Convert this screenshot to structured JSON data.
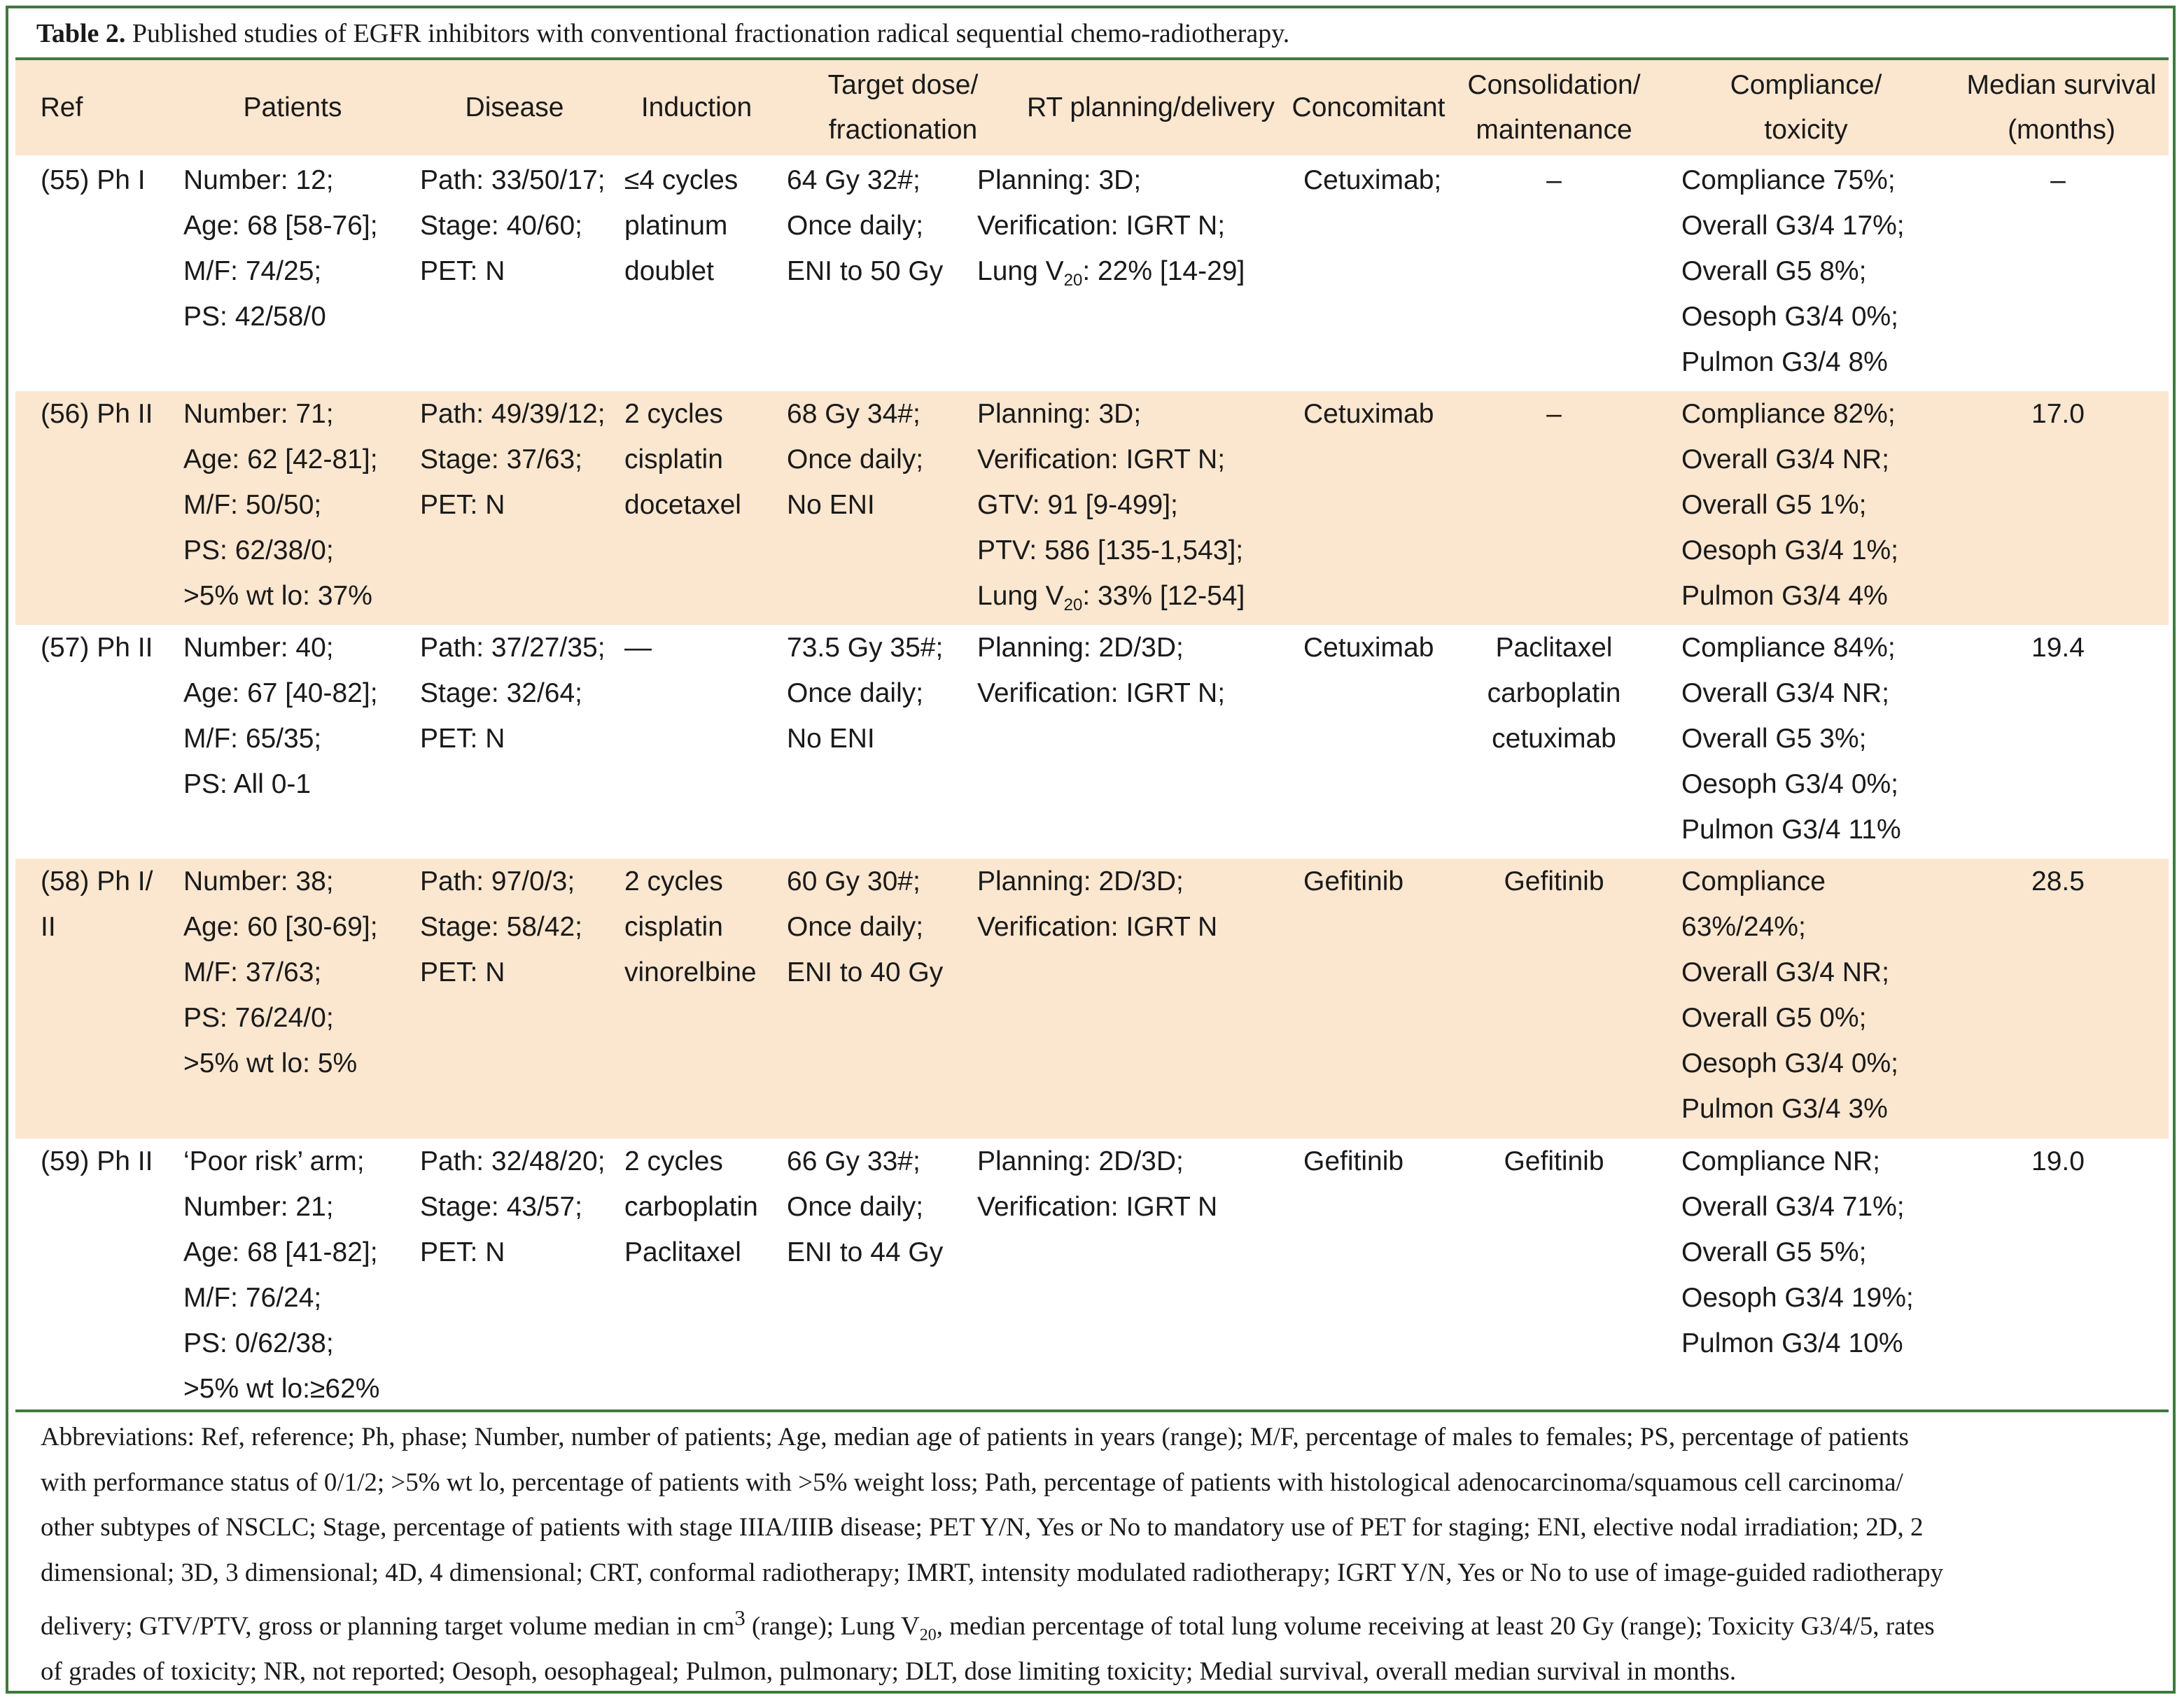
{
  "caption": {
    "label": "Table 2.",
    "text": "Published studies of EGFR inhibitors with conventional fractionation radical sequential chemo-radiotherapy."
  },
  "headers": [
    [
      "Ref"
    ],
    [
      "Patients"
    ],
    [
      "Disease"
    ],
    [
      "Induction"
    ],
    [
      "Target dose/",
      "fractionation"
    ],
    [
      "RT planning/delivery"
    ],
    [
      "Concomitant"
    ],
    [
      "Consolidation/",
      "maintenance"
    ],
    [
      "Compliance/",
      "toxicity"
    ],
    [
      "Median survival",
      "(months)"
    ]
  ],
  "rows": [
    {
      "ref": [
        "(55) Ph I"
      ],
      "patients": [
        "Number: 12;",
        "Age: 68 [58-76];",
        "M/F: 74/25;",
        "PS: 42/58/0"
      ],
      "disease": [
        "Path: 33/50/17;",
        "Stage: 40/60;",
        "PET: N"
      ],
      "induction": [
        "≤4 cycles",
        "platinum",
        "doublet"
      ],
      "dose": [
        "64 Gy 32#;",
        "Once daily;",
        "ENI to 50 Gy"
      ],
      "rt": [
        "Planning: 3D;",
        "Verification: IGRT N;",
        "Lung V<sub>20</sub>: 22% [14-29]"
      ],
      "concomitant": [
        "Cetuximab;"
      ],
      "consolidation": [
        "–"
      ],
      "compliance": [
        "Compliance 75%;",
        "Overall G3/4 17%;",
        "Overall G5 8%;",
        "Oesoph G3/4 0%;",
        "Pulmon G3/4 8%"
      ],
      "survival": [
        "–"
      ]
    },
    {
      "ref": [
        "(56) Ph II"
      ],
      "patients": [
        "Number: 71;",
        "Age: 62 [42-81];",
        "M/F: 50/50;",
        "PS: 62/38/0;",
        ">5% wt lo: 37%"
      ],
      "disease": [
        "Path: 49/39/12;",
        "Stage: 37/63;",
        "PET: N"
      ],
      "induction": [
        "2 cycles",
        "cisplatin",
        "docetaxel"
      ],
      "dose": [
        "68 Gy 34#;",
        "Once daily;",
        "No ENI"
      ],
      "rt": [
        "Planning: 3D;",
        "Verification: IGRT N;",
        "GTV: 91 [9-499];",
        "PTV: 586 [135-1,543];",
        "Lung V<sub>20</sub>: 33% [12-54]"
      ],
      "concomitant": [
        "Cetuximab"
      ],
      "consolidation": [
        "–"
      ],
      "compliance": [
        "Compliance 82%;",
        "Overall G3/4 NR;",
        "Overall G5 1%;",
        "Oesoph G3/4 1%;",
        "Pulmon G3/4 4%"
      ],
      "survival": [
        "17.0"
      ]
    },
    {
      "ref": [
        "(57) Ph II"
      ],
      "patients": [
        "Number: 40;",
        "Age: 67 [40-82];",
        "M/F: 65/35;",
        "PS: All 0-1"
      ],
      "disease": [
        "Path: 37/27/35;",
        "Stage: 32/64;",
        "PET: N"
      ],
      "induction": [
        "—"
      ],
      "dose": [
        "73.5 Gy 35#;",
        "Once daily;",
        "No ENI"
      ],
      "rt": [
        "Planning: 2D/3D;",
        "Verification: IGRT N;"
      ],
      "concomitant": [
        "Cetuximab"
      ],
      "consolidation": [
        "Paclitaxel",
        "carboplatin",
        "cetuximab"
      ],
      "compliance": [
        "Compliance 84%;",
        "Overall G3/4 NR;",
        "Overall G5 3%;",
        "Oesoph G3/4 0%;",
        "Pulmon G3/4 11%"
      ],
      "survival": [
        "19.4"
      ]
    },
    {
      "ref": [
        "(58) Ph I/",
        "II"
      ],
      "patients": [
        "Number: 38;",
        "Age: 60 [30-69];",
        "M/F: 37/63;",
        "PS: 76/24/0;",
        ">5% wt lo: 5%"
      ],
      "disease": [
        "Path: 97/0/3;",
        "Stage: 58/42;",
        "PET: N"
      ],
      "induction": [
        "2 cycles",
        "cisplatin",
        "vinorelbine"
      ],
      "dose": [
        "60 Gy 30#;",
        "Once daily;",
        "ENI to 40 Gy"
      ],
      "rt": [
        "Planning: 2D/3D;",
        "Verification: IGRT N"
      ],
      "concomitant": [
        "Gefitinib"
      ],
      "consolidation": [
        "Gefitinib"
      ],
      "compliance": [
        "Compliance",
        "63%/24%;",
        "Overall G3/4 NR;",
        "Overall G5 0%;",
        "Oesoph G3/4 0%;",
        "Pulmon G3/4 3%"
      ],
      "survival": [
        "28.5"
      ]
    },
    {
      "ref": [
        "(59) Ph II"
      ],
      "patients": [
        "‘Poor risk’ arm;",
        "Number: 21;",
        "Age: 68 [41-82];",
        "M/F: 76/24;",
        "PS: 0/62/38;",
        ">5% wt lo:≥62%"
      ],
      "disease": [
        "Path: 32/48/20;",
        "Stage: 43/57;",
        "PET: N"
      ],
      "induction": [
        "2 cycles",
        "carboplatin",
        "Paclitaxel"
      ],
      "dose": [
        "66 Gy 33#;",
        "Once daily;",
        " ENI to 44 Gy"
      ],
      "rt": [
        "Planning: 2D/3D;",
        "Verification: IGRT N"
      ],
      "concomitant": [
        "Gefitinib"
      ],
      "consolidation": [
        "Gefitinib"
      ],
      "compliance": [
        "Compliance NR;",
        "Overall G3/4 71%;",
        "Overall G5 5%;",
        "Oesoph G3/4 19%;",
        "Pulmon G3/4 10%"
      ],
      "survival": [
        "19.0"
      ]
    }
  ],
  "abbreviations": [
    "Abbreviations: Ref, reference; Ph, phase; Number, number of patients; Age, median age of patients in years (range); M/F, percentage of males to females; PS, percentage of patients",
    "with performance status of 0/1/2; >5% wt lo, percentage of patients with >5% weight loss; Path, percentage of patients with histological adenocarcinoma/squamous cell carcinoma/",
    "other subtypes of NSCLC; Stage, percentage of patients with stage IIIA/IIIB disease; PET Y/N, Yes or No to mandatory use of PET for staging; ENI, elective nodal irradiation; 2D, 2",
    "dimensional; 3D, 3 dimensional; 4D, 4 dimensional; CRT, conformal radiotherapy; IMRT, intensity modulated radiotherapy; IGRT Y/N, Yes or No to use of image-guided radiotherapy",
    "delivery; GTV/PTV, gross or planning target volume median in cm<sup>3</sup> (range); Lung V<sub>20</sub>, median percentage of total lung volume receiving at least 20 Gy (range); Toxicity G3/4/5, rates",
    "of grades of toxicity; NR, not reported; Oesoph, oesophageal; Pulmon, pulmonary; DLT, dose limiting toxicity; Medial survival, overall median survival in months."
  ],
  "colors": {
    "border": "#3f7a3f",
    "band": "#fbe6cf"
  }
}
